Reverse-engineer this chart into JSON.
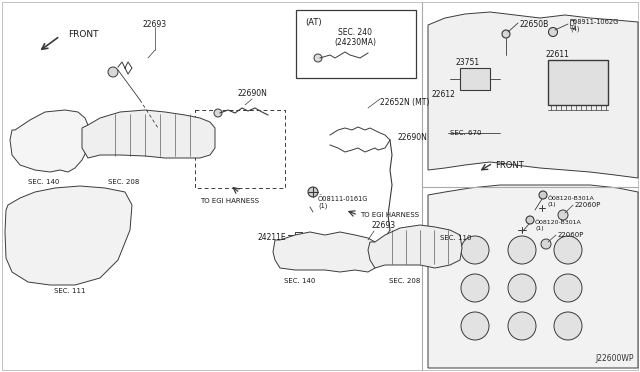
{
  "bg_color": "#ffffff",
  "lc": "#3a3a3a",
  "fig_width": 6.4,
  "fig_height": 3.72,
  "dpi": 100,
  "labels": {
    "front_top": "FRONT",
    "at_box_label": "(AT)",
    "sec240": "SEC. 240\n(24230MA)",
    "22693_top": "22693",
    "22690N_top": "22690N",
    "22652N": "22652N (MT)",
    "22690N_mid": "22690N",
    "to_egi1": "TO EGI HARNESS",
    "to_egi2": "TO EGI HARNESS",
    "08111": "Õ08111-0161G\n(1)",
    "24211E": "24211E",
    "22693_bot": "22693",
    "sec140_tl": "SEC. 140",
    "sec208_tl": "SEC. 208",
    "sec111": "SEC. 111",
    "sec140_bot": "SEC. 140",
    "sec208_bot": "SEC. 208",
    "22650B": "22650B",
    "N08911": "ⓝ08911-1062G\n(4)",
    "23751": "23751",
    "22611": "22611",
    "22612": "22612",
    "sec670": "SEC. 670",
    "front_right": "FRONT",
    "08120_1": "Õ08120-B301A\n(1)",
    "08120_2": "Õ08120-B301A\n(1)",
    "22060P_1": "22060P",
    "22060P_2": "22060P",
    "sec110": "SEC. 110",
    "J22600WP": "J22600WP"
  }
}
